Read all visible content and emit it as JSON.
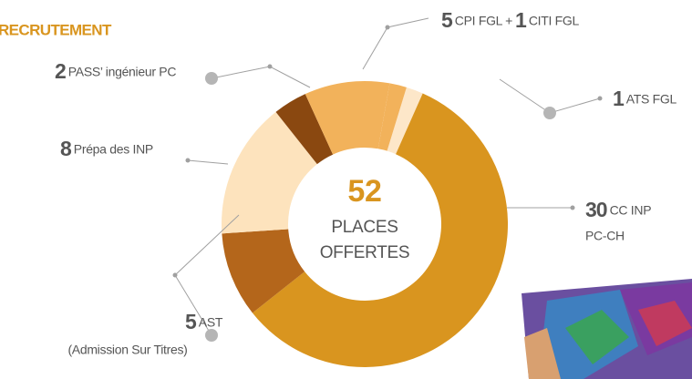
{
  "chart_data": {
    "type": "pie",
    "title": "RECRUTEMENT",
    "categories": [
      [
        "ATS FGL"
      ],
      [
        "CC INP",
        "PC-CH"
      ],
      [
        "AST",
        "(Admission Sur Titres)"
      ],
      [
        "Prépa des INP"
      ],
      [
        "PASS’ ingénieur PC"
      ],
      [
        "CPI FGL"
      ],
      [
        "CITI FGL"
      ]
    ],
    "values": [
      1,
      30,
      5,
      8,
      2,
      5,
      1
    ],
    "colors": [
      "#fde7c9",
      "#d9951f",
      "#b4661b",
      "#fde3bd",
      "#8a4810",
      "#f2b25b",
      "#f2b25b"
    ],
    "total": 52,
    "center_label": [
      "PLACES",
      "OFFERTES"
    ],
    "joiner": "+"
  }
}
